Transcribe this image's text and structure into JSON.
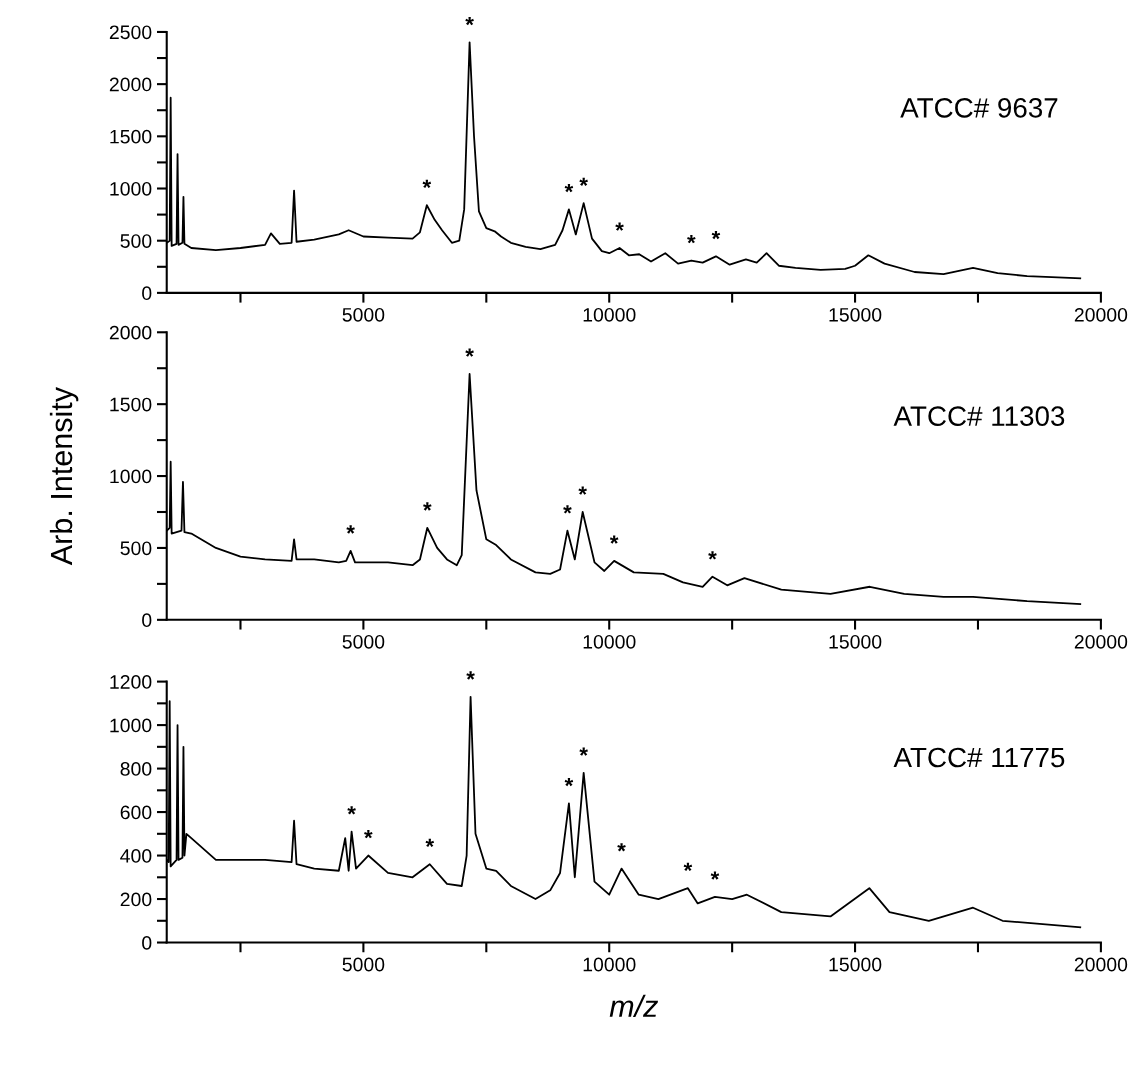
{
  "chart_data": [
    {
      "type": "line",
      "title": "ATCC# 9637",
      "xlim": [
        1000,
        20000
      ],
      "xticks": [
        {
          "value": 2500,
          "label": null
        },
        5000,
        {
          "value": 7500,
          "label": null
        },
        10000,
        {
          "value": 12500,
          "label": null
        },
        15000,
        {
          "value": 17500,
          "label": null
        },
        20000
      ],
      "ylim": [
        0,
        2500
      ],
      "yticks": [
        0,
        {
          "value": 250,
          "label": null
        },
        500,
        {
          "value": 750,
          "label": null
        },
        1000,
        {
          "value": 1250,
          "label": null
        },
        1500,
        {
          "value": 1750,
          "label": null
        },
        2000,
        {
          "value": 2250,
          "label": null
        },
        2500
      ],
      "grid": false,
      "series": [
        {
          "color": "#000000",
          "x": [
            1000,
            1060,
            1080,
            1100,
            1200,
            1220,
            1240,
            1320,
            1340,
            1360,
            1500,
            2000,
            2500,
            3000,
            3120,
            3300,
            3540,
            3590,
            3640,
            4000,
            4500,
            4700,
            5000,
            5500,
            6000,
            6150,
            6290,
            6450,
            6600,
            6800,
            6950,
            7050,
            7160,
            7250,
            7350,
            7500,
            7670,
            7800,
            8000,
            8300,
            8600,
            8900,
            9050,
            9180,
            9320,
            9480,
            9650,
            9850,
            10000,
            10210,
            10400,
            10610,
            10850,
            11140,
            11400,
            11670,
            11900,
            12170,
            12450,
            12780,
            13000,
            13200,
            13450,
            13790,
            14300,
            14800,
            15000,
            15270,
            15600,
            16210,
            16800,
            17400,
            17900,
            18500,
            19000,
            19580
          ],
          "values": [
            480,
            500,
            1870,
            450,
            470,
            1330,
            460,
            480,
            920,
            470,
            430,
            410,
            430,
            460,
            570,
            470,
            480,
            980,
            490,
            510,
            560,
            600,
            540,
            530,
            520,
            580,
            840,
            700,
            600,
            480,
            500,
            800,
            2400,
            1500,
            780,
            620,
            590,
            540,
            480,
            440,
            420,
            460,
            600,
            800,
            560,
            860,
            520,
            400,
            380,
            430,
            360,
            370,
            300,
            380,
            280,
            310,
            290,
            350,
            270,
            320,
            290,
            380,
            260,
            240,
            220,
            230,
            260,
            360,
            280,
            200,
            180,
            240,
            190,
            160,
            150,
            140
          ]
        }
      ],
      "annotations": [
        {
          "text": "*",
          "x": 6290,
          "y": 840
        },
        {
          "text": "*",
          "x": 7160,
          "y": 2400
        },
        {
          "text": "*",
          "x": 9180,
          "y": 800
        },
        {
          "text": "*",
          "x": 9480,
          "y": 860
        },
        {
          "text": "*",
          "x": 10210,
          "y": 430
        },
        {
          "text": "*",
          "x": 11670,
          "y": 310
        },
        {
          "text": "*",
          "x": 12170,
          "y": 350
        }
      ]
    },
    {
      "type": "line",
      "title": "ATCC# 11303",
      "ylabel": "Arb. Intensity",
      "xlim": [
        1000,
        20000
      ],
      "xticks": [
        {
          "value": 2500,
          "label": null
        },
        5000,
        {
          "value": 7500,
          "label": null
        },
        10000,
        {
          "value": 12500,
          "label": null
        },
        15000,
        {
          "value": 17500,
          "label": null
        },
        20000
      ],
      "ylim": [
        0,
        2000
      ],
      "yticks": [
        0,
        {
          "value": 250,
          "label": null
        },
        500,
        {
          "value": 750,
          "label": null
        },
        1000,
        {
          "value": 1250,
          "label": null
        },
        1500,
        {
          "value": 1750,
          "label": null
        },
        2000
      ],
      "grid": false,
      "series": [
        {
          "color": "#000000",
          "x": [
            1000,
            1060,
            1080,
            1100,
            1300,
            1330,
            1360,
            1500,
            2000,
            2500,
            3000,
            3540,
            3590,
            3640,
            4000,
            4500,
            4650,
            4740,
            4830,
            5500,
            6000,
            6150,
            6300,
            6500,
            6700,
            6900,
            7000,
            7160,
            7300,
            7500,
            7700,
            8000,
            8500,
            8800,
            9000,
            9150,
            9300,
            9460,
            9700,
            9900,
            10100,
            10500,
            11100,
            11500,
            11900,
            12100,
            12400,
            12750,
            13500,
            14500,
            15300,
            16000,
            16800,
            17400,
            18500,
            19580
          ],
          "values": [
            620,
            640,
            1100,
            600,
            620,
            960,
            610,
            600,
            500,
            440,
            420,
            410,
            560,
            420,
            420,
            400,
            410,
            480,
            400,
            400,
            380,
            420,
            640,
            500,
            420,
            380,
            450,
            1710,
            900,
            560,
            520,
            420,
            330,
            320,
            350,
            620,
            420,
            750,
            400,
            340,
            410,
            330,
            320,
            260,
            230,
            300,
            240,
            290,
            210,
            180,
            230,
            180,
            160,
            160,
            130,
            110
          ]
        }
      ],
      "annotations": [
        {
          "text": "*",
          "x": 4740,
          "y": 480
        },
        {
          "text": "*",
          "x": 6300,
          "y": 640
        },
        {
          "text": "*",
          "x": 7160,
          "y": 1710
        },
        {
          "text": "*",
          "x": 9150,
          "y": 620
        },
        {
          "text": "*",
          "x": 9460,
          "y": 750
        },
        {
          "text": "*",
          "x": 10100,
          "y": 410
        },
        {
          "text": "*",
          "x": 12100,
          "y": 300
        }
      ]
    },
    {
      "type": "line",
      "title": "ATCC# 11775",
      "xlabel": "m/z",
      "xlim": [
        1000,
        20000
      ],
      "xticks": [
        {
          "value": 2500,
          "label": null
        },
        5000,
        {
          "value": 7500,
          "label": null
        },
        10000,
        {
          "value": 12500,
          "label": null
        },
        15000,
        {
          "value": 17500,
          "label": null
        },
        20000
      ],
      "ylim": [
        0,
        1200
      ],
      "yticks": [
        0,
        {
          "value": 100,
          "label": null
        },
        200,
        {
          "value": 300,
          "label": null
        },
        400,
        {
          "value": 500,
          "label": null
        },
        600,
        {
          "value": 700,
          "label": null
        },
        800,
        {
          "value": 900,
          "label": null
        },
        1000,
        {
          "value": 1100,
          "label": null
        },
        1200
      ],
      "grid": false,
      "series": [
        {
          "color": "#000000",
          "x": [
            1000,
            1040,
            1060,
            1080,
            1200,
            1220,
            1240,
            1320,
            1340,
            1360,
            1400,
            1500,
            2000,
            2500,
            3000,
            3540,
            3590,
            3640,
            4000,
            4500,
            4630,
            4700,
            4760,
            4850,
            5100,
            5500,
            6000,
            6350,
            6700,
            7000,
            7100,
            7180,
            7280,
            7500,
            7700,
            8000,
            8500,
            8800,
            9000,
            9180,
            9300,
            9480,
            9700,
            10000,
            10250,
            10600,
            11000,
            11600,
            11800,
            12150,
            12500,
            12800,
            13500,
            14500,
            15290,
            15700,
            16500,
            17400,
            18000,
            19580
          ],
          "values": [
            380,
            370,
            1110,
            350,
            380,
            1000,
            380,
            390,
            900,
            400,
            500,
            480,
            380,
            380,
            380,
            370,
            560,
            360,
            340,
            330,
            480,
            330,
            510,
            340,
            400,
            320,
            300,
            360,
            270,
            260,
            400,
            1130,
            500,
            340,
            330,
            260,
            200,
            240,
            320,
            640,
            300,
            780,
            280,
            220,
            340,
            220,
            200,
            250,
            180,
            210,
            200,
            220,
            140,
            120,
            250,
            140,
            100,
            160,
            100,
            70
          ]
        }
      ],
      "annotations": [
        {
          "text": "*",
          "x": 4760,
          "y": 510
        },
        {
          "text": "*",
          "x": 5100,
          "y": 400
        },
        {
          "text": "*",
          "x": 6350,
          "y": 360
        },
        {
          "text": "*",
          "x": 7180,
          "y": 1130
        },
        {
          "text": "*",
          "x": 9180,
          "y": 640
        },
        {
          "text": "*",
          "x": 9480,
          "y": 780
        },
        {
          "text": "*",
          "x": 10250,
          "y": 340
        },
        {
          "text": "*",
          "x": 11600,
          "y": 250
        },
        {
          "text": "*",
          "x": 12150,
          "y": 210
        }
      ]
    }
  ]
}
